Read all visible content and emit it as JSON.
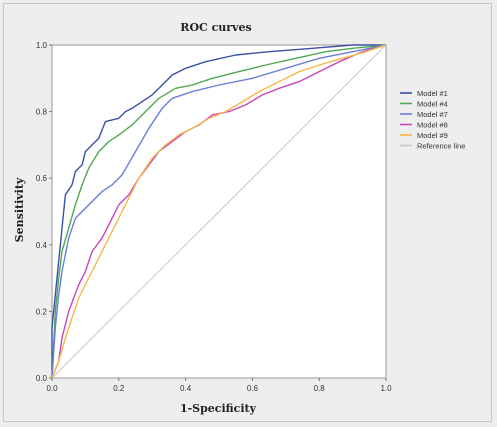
{
  "chart_data": {
    "type": "line",
    "title": "ROC curves",
    "xlabel": "1-Specificity",
    "ylabel": "Sensitivity",
    "xlim": [
      0,
      1
    ],
    "ylim": [
      0,
      1
    ],
    "x_ticks": [
      "0.0",
      "0.2",
      "0.4",
      "0.6",
      "0.8",
      "1.0"
    ],
    "y_ticks": [
      "0.0",
      "0.2",
      "0.4",
      "0.6",
      "0.8",
      "1.0"
    ],
    "grid": false,
    "legend_position": "right",
    "series": [
      {
        "name": "Model #1",
        "color": "#3a4fa8",
        "points": [
          [
            0,
            0
          ],
          [
            0,
            0.15
          ],
          [
            0.01,
            0.25
          ],
          [
            0.02,
            0.35
          ],
          [
            0.03,
            0.45
          ],
          [
            0.04,
            0.55
          ],
          [
            0.06,
            0.58
          ],
          [
            0.07,
            0.62
          ],
          [
            0.09,
            0.64
          ],
          [
            0.1,
            0.68
          ],
          [
            0.12,
            0.7
          ],
          [
            0.14,
            0.72
          ],
          [
            0.16,
            0.77
          ],
          [
            0.2,
            0.78
          ],
          [
            0.22,
            0.8
          ],
          [
            0.24,
            0.81
          ],
          [
            0.27,
            0.83
          ],
          [
            0.3,
            0.85
          ],
          [
            0.33,
            0.88
          ],
          [
            0.36,
            0.91
          ],
          [
            0.4,
            0.93
          ],
          [
            0.46,
            0.95
          ],
          [
            0.55,
            0.97
          ],
          [
            0.65,
            0.98
          ],
          [
            0.78,
            0.99
          ],
          [
            0.9,
            1.0
          ],
          [
            1,
            1
          ]
        ]
      },
      {
        "name": "Model #4",
        "color": "#4fa84f",
        "points": [
          [
            0,
            0
          ],
          [
            0.01,
            0.2
          ],
          [
            0.02,
            0.3
          ],
          [
            0.03,
            0.38
          ],
          [
            0.05,
            0.45
          ],
          [
            0.07,
            0.52
          ],
          [
            0.09,
            0.58
          ],
          [
            0.11,
            0.63
          ],
          [
            0.14,
            0.68
          ],
          [
            0.17,
            0.71
          ],
          [
            0.2,
            0.73
          ],
          [
            0.24,
            0.76
          ],
          [
            0.28,
            0.8
          ],
          [
            0.32,
            0.84
          ],
          [
            0.37,
            0.87
          ],
          [
            0.42,
            0.88
          ],
          [
            0.48,
            0.9
          ],
          [
            0.56,
            0.92
          ],
          [
            0.64,
            0.94
          ],
          [
            0.73,
            0.96
          ],
          [
            0.82,
            0.98
          ],
          [
            0.9,
            0.99
          ],
          [
            1,
            1
          ]
        ]
      },
      {
        "name": "Model #7",
        "color": "#6a7fd8",
        "points": [
          [
            0,
            0
          ],
          [
            0.01,
            0.15
          ],
          [
            0.02,
            0.25
          ],
          [
            0.03,
            0.32
          ],
          [
            0.05,
            0.42
          ],
          [
            0.07,
            0.48
          ],
          [
            0.09,
            0.5
          ],
          [
            0.12,
            0.53
          ],
          [
            0.15,
            0.56
          ],
          [
            0.18,
            0.58
          ],
          [
            0.21,
            0.61
          ],
          [
            0.25,
            0.68
          ],
          [
            0.29,
            0.75
          ],
          [
            0.33,
            0.81
          ],
          [
            0.36,
            0.84
          ],
          [
            0.42,
            0.86
          ],
          [
            0.5,
            0.88
          ],
          [
            0.6,
            0.9
          ],
          [
            0.7,
            0.93
          ],
          [
            0.8,
            0.96
          ],
          [
            0.9,
            0.98
          ],
          [
            1,
            1
          ]
        ]
      },
      {
        "name": "Model #8",
        "color": "#cc44bb",
        "points": [
          [
            0,
            0
          ],
          [
            0.02,
            0.05
          ],
          [
            0.03,
            0.12
          ],
          [
            0.05,
            0.2
          ],
          [
            0.08,
            0.28
          ],
          [
            0.1,
            0.32
          ],
          [
            0.12,
            0.38
          ],
          [
            0.15,
            0.42
          ],
          [
            0.18,
            0.48
          ],
          [
            0.2,
            0.52
          ],
          [
            0.23,
            0.55
          ],
          [
            0.26,
            0.6
          ],
          [
            0.29,
            0.64
          ],
          [
            0.32,
            0.68
          ],
          [
            0.36,
            0.71
          ],
          [
            0.4,
            0.74
          ],
          [
            0.44,
            0.76
          ],
          [
            0.48,
            0.79
          ],
          [
            0.53,
            0.8
          ],
          [
            0.58,
            0.82
          ],
          [
            0.63,
            0.85
          ],
          [
            0.68,
            0.87
          ],
          [
            0.74,
            0.89
          ],
          [
            0.8,
            0.92
          ],
          [
            0.86,
            0.95
          ],
          [
            0.93,
            0.98
          ],
          [
            1,
            1
          ]
        ]
      },
      {
        "name": "Model #9",
        "color": "#f5b84a",
        "points": [
          [
            0,
            0
          ],
          [
            0.02,
            0.05
          ],
          [
            0.04,
            0.12
          ],
          [
            0.06,
            0.18
          ],
          [
            0.08,
            0.24
          ],
          [
            0.11,
            0.3
          ],
          [
            0.14,
            0.36
          ],
          [
            0.17,
            0.42
          ],
          [
            0.2,
            0.48
          ],
          [
            0.23,
            0.54
          ],
          [
            0.26,
            0.6
          ],
          [
            0.3,
            0.66
          ],
          [
            0.34,
            0.7
          ],
          [
            0.38,
            0.73
          ],
          [
            0.42,
            0.75
          ],
          [
            0.47,
            0.78
          ],
          [
            0.52,
            0.8
          ],
          [
            0.57,
            0.83
          ],
          [
            0.62,
            0.86
          ],
          [
            0.68,
            0.89
          ],
          [
            0.74,
            0.92
          ],
          [
            0.8,
            0.94
          ],
          [
            0.87,
            0.96
          ],
          [
            0.94,
            0.98
          ],
          [
            1,
            1
          ]
        ]
      },
      {
        "name": "Reference line",
        "color": "#c8c8c8",
        "points": [
          [
            0,
            0
          ],
          [
            1,
            1
          ]
        ]
      }
    ]
  }
}
